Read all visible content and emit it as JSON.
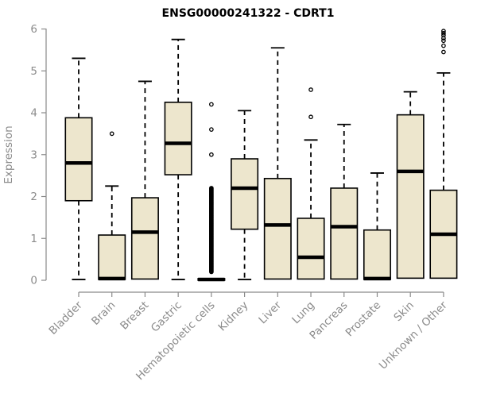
{
  "chart_data": {
    "type": "boxplot",
    "title": "ENSG00000241322 - CDRT1",
    "ylabel": "Expression",
    "xlabel": "",
    "ylim": [
      0,
      6
    ],
    "yticks": [
      0,
      1,
      2,
      3,
      4,
      5,
      6
    ],
    "grid": false,
    "legend": false,
    "categories": [
      "Bladder",
      "Brain",
      "Breast",
      "Gastric",
      "Hematopoietic cells",
      "Kidney",
      "Liver",
      "Lung",
      "Pancreas",
      "Prostate",
      "Skin",
      "Unknown / Other"
    ],
    "series": [
      {
        "name": "Bladder",
        "whisker_low": 0.02,
        "q1": 1.9,
        "median": 2.8,
        "q3": 3.88,
        "whisker_high": 5.3,
        "outliers": [],
        "outlier_range": null
      },
      {
        "name": "Brain",
        "whisker_low": 0.02,
        "q1": 0.02,
        "median": 0.04,
        "q3": 1.08,
        "whisker_high": 2.25,
        "outliers": [
          3.5
        ],
        "outlier_range": null
      },
      {
        "name": "Breast",
        "whisker_low": 0.02,
        "q1": 0.03,
        "median": 1.15,
        "q3": 1.97,
        "whisker_high": 4.75,
        "outliers": [],
        "outlier_range": null
      },
      {
        "name": "Gastric",
        "whisker_low": 0.02,
        "q1": 2.52,
        "median": 3.27,
        "q3": 4.25,
        "whisker_high": 5.75,
        "outliers": [],
        "outlier_range": null
      },
      {
        "name": "Hematopoietic cells",
        "whisker_low": 0.0,
        "q1": 0.0,
        "median": 0.02,
        "q3": 0.04,
        "whisker_high": 0.04,
        "outliers": [
          3.0,
          3.6,
          4.2
        ],
        "outlier_range": {
          "from": 0.2,
          "to": 2.2,
          "step": 0.02
        }
      },
      {
        "name": "Kidney",
        "whisker_low": 0.02,
        "q1": 1.22,
        "median": 2.2,
        "q3": 2.9,
        "whisker_high": 4.05,
        "outliers": [],
        "outlier_range": null
      },
      {
        "name": "Liver",
        "whisker_low": 0.02,
        "q1": 0.03,
        "median": 1.32,
        "q3": 2.43,
        "whisker_high": 5.55,
        "outliers": [],
        "outlier_range": null
      },
      {
        "name": "Lung",
        "whisker_low": 0.02,
        "q1": 0.03,
        "median": 0.55,
        "q3": 1.48,
        "whisker_high": 3.35,
        "outliers": [
          3.9,
          4.55
        ],
        "outlier_range": null
      },
      {
        "name": "Pancreas",
        "whisker_low": 0.02,
        "q1": 0.03,
        "median": 1.28,
        "q3": 2.2,
        "whisker_high": 3.72,
        "outliers": [],
        "outlier_range": null
      },
      {
        "name": "Prostate",
        "whisker_low": 0.02,
        "q1": 0.02,
        "median": 0.04,
        "q3": 1.2,
        "whisker_high": 2.56,
        "outliers": [],
        "outlier_range": null
      },
      {
        "name": "Skin",
        "whisker_low": 0.05,
        "q1": 0.05,
        "median": 2.6,
        "q3": 3.95,
        "whisker_high": 4.5,
        "outliers": [],
        "outlier_range": null
      },
      {
        "name": "Unknown / Other",
        "whisker_low": 0.05,
        "q1": 0.05,
        "median": 1.1,
        "q3": 2.15,
        "whisker_high": 4.95,
        "outliers": [
          5.45,
          5.6,
          5.72,
          5.78,
          5.85,
          5.9,
          5.95
        ],
        "outlier_range": null
      }
    ],
    "colors": {
      "box_fill": "#EDE6CD",
      "box_border": "#000000",
      "median": "#000000",
      "whisker": "#000000",
      "outlier": "#000000",
      "axis_line": "#8a8a8a",
      "axis_text": "#8b8b8b",
      "title": "#000000",
      "background": "#FFFFFF"
    }
  }
}
